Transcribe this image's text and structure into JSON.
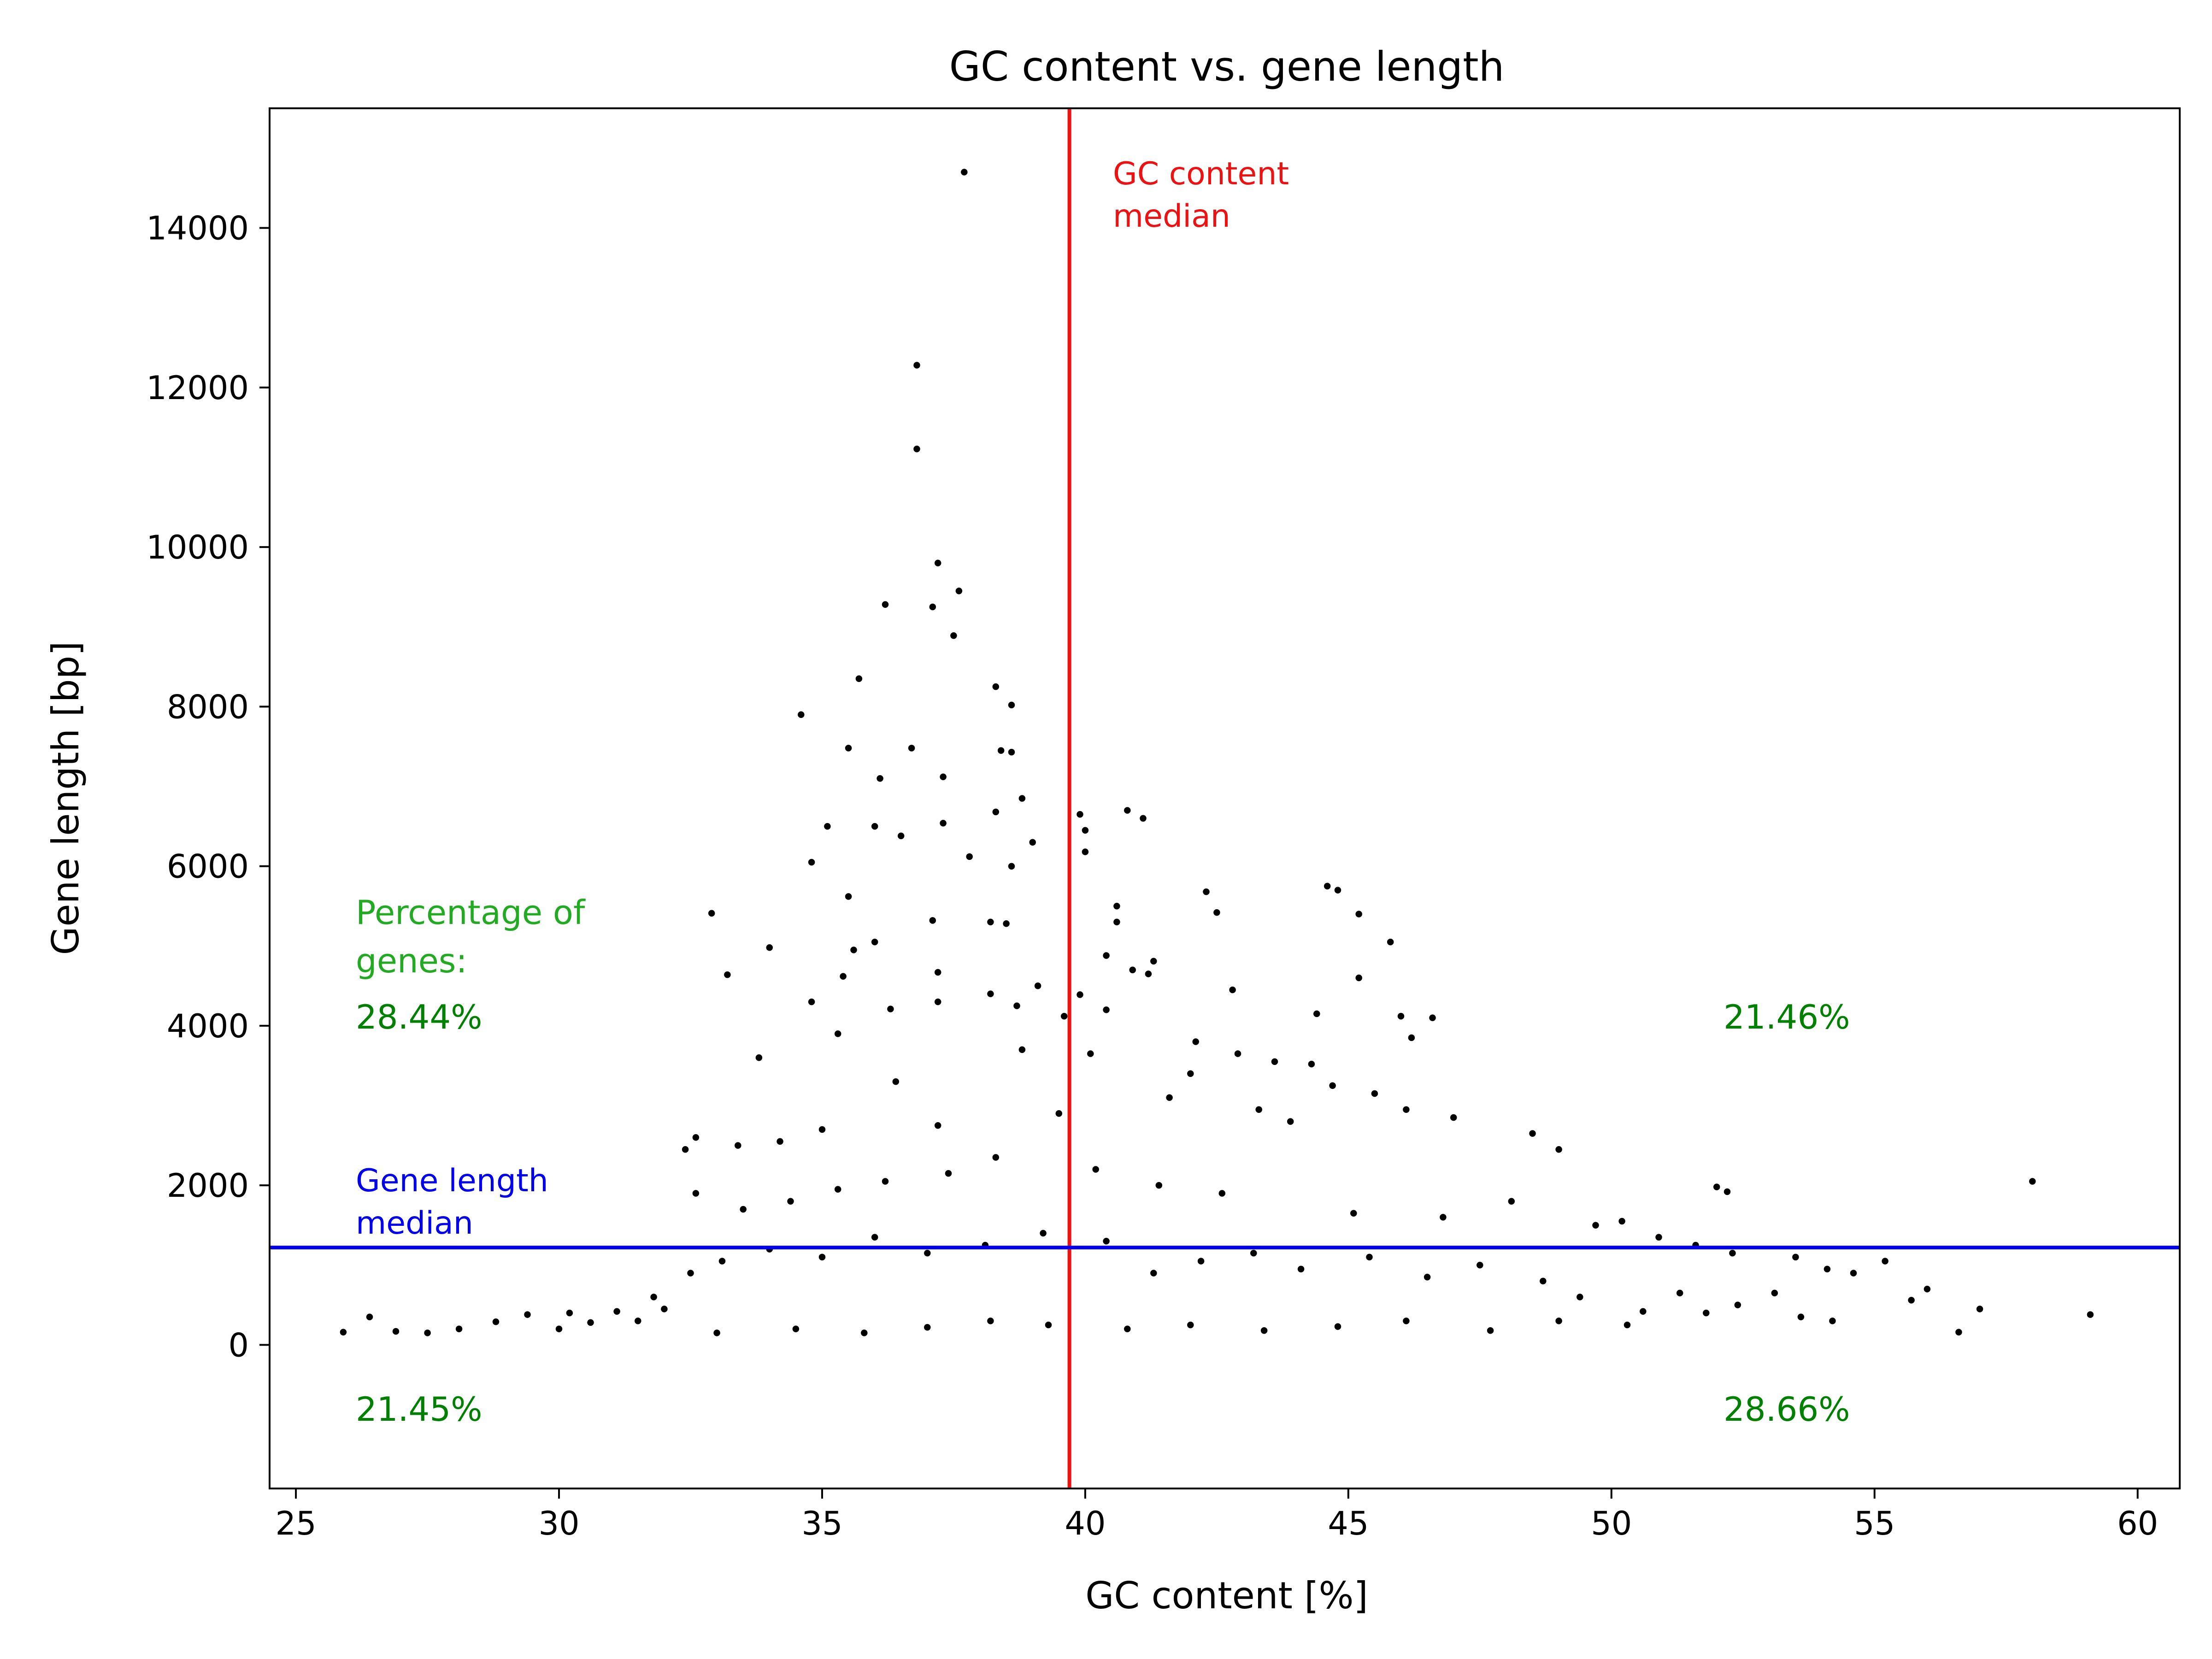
{
  "chart_data": {
    "type": "scatter",
    "title": "GC content vs. gene length",
    "xlabel": "GC content [%]",
    "ylabel": "Gene length [bp]",
    "xlim": [
      24.5,
      60.8
    ],
    "ylim": [
      -1800,
      15500
    ],
    "xticks": [
      25,
      30,
      35,
      40,
      45,
      50,
      55,
      60
    ],
    "yticks": [
      0,
      2000,
      4000,
      6000,
      8000,
      10000,
      12000,
      14000
    ],
    "grid": false,
    "legend": "none",
    "gc_median": 39.7,
    "length_median": 1220,
    "median_labels": {
      "gc": [
        "GC content",
        "median"
      ],
      "length": [
        "Gene length",
        "median"
      ]
    },
    "quadrant_heading": [
      "Percentage of",
      "genes:"
    ],
    "quadrants": {
      "upper_left": "28.44%",
      "upper_right": "21.46%",
      "lower_left": "21.45%",
      "lower_right": "28.66%"
    },
    "colors": {
      "points": "#000000",
      "gc_median_line": "#ee1111",
      "length_median_line": "#0000ee",
      "quadrant_text": "#008000",
      "heading_text": "#22aa22"
    },
    "series": [
      {
        "values": [
          [
            37.7,
            14700
          ],
          [
            36.8,
            12280
          ],
          [
            36.8,
            11230
          ],
          [
            37.2,
            9800
          ],
          [
            37.6,
            9450
          ],
          [
            36.2,
            9280
          ],
          [
            37.1,
            9250
          ],
          [
            37.5,
            8890
          ],
          [
            35.7,
            8350
          ],
          [
            38.3,
            8250
          ],
          [
            38.6,
            8020
          ],
          [
            34.6,
            7900
          ],
          [
            35.5,
            7480
          ],
          [
            36.7,
            7480
          ],
          [
            38.4,
            7450
          ],
          [
            38.6,
            7430
          ],
          [
            37.3,
            7120
          ],
          [
            36.1,
            7100
          ],
          [
            38.8,
            6850
          ],
          [
            40.8,
            6700
          ],
          [
            38.3,
            6680
          ],
          [
            39.9,
            6650
          ],
          [
            41.1,
            6600
          ],
          [
            37.3,
            6540
          ],
          [
            35.1,
            6500
          ],
          [
            36.0,
            6500
          ],
          [
            40.0,
            6450
          ],
          [
            36.5,
            6380
          ],
          [
            39.0,
            6300
          ],
          [
            37.8,
            6120
          ],
          [
            40.0,
            6180
          ],
          [
            34.8,
            6050
          ],
          [
            38.6,
            6000
          ],
          [
            44.6,
            5750
          ],
          [
            44.8,
            5700
          ],
          [
            42.3,
            5680
          ],
          [
            35.5,
            5620
          ],
          [
            38.2,
            5300
          ],
          [
            38.5,
            5280
          ],
          [
            37.1,
            5320
          ],
          [
            42.5,
            5420
          ],
          [
            45.2,
            5400
          ],
          [
            32.9,
            5410
          ],
          [
            40.6,
            5300
          ],
          [
            40.6,
            5500
          ],
          [
            45.8,
            5050
          ],
          [
            36.0,
            5050
          ],
          [
            35.6,
            4950
          ],
          [
            34.0,
            4980
          ],
          [
            40.4,
            4880
          ],
          [
            41.3,
            4810
          ],
          [
            40.9,
            4700
          ],
          [
            37.2,
            4670
          ],
          [
            35.4,
            4620
          ],
          [
            33.2,
            4640
          ],
          [
            42.8,
            4450
          ],
          [
            45.2,
            4600
          ],
          [
            41.2,
            4650
          ],
          [
            34.8,
            4300
          ],
          [
            38.2,
            4400
          ],
          [
            39.1,
            4500
          ],
          [
            44.4,
            4150
          ],
          [
            46.0,
            4120
          ],
          [
            46.6,
            4100
          ],
          [
            36.3,
            4210
          ],
          [
            37.2,
            4300
          ],
          [
            38.7,
            4250
          ],
          [
            39.6,
            4120
          ],
          [
            39.9,
            4390
          ],
          [
            40.4,
            4200
          ],
          [
            42.1,
            3800
          ],
          [
            42.9,
            3650
          ],
          [
            43.6,
            3550
          ],
          [
            44.3,
            3520
          ],
          [
            46.2,
            3850
          ],
          [
            40.1,
            3650
          ],
          [
            38.8,
            3700
          ],
          [
            35.3,
            3900
          ],
          [
            33.8,
            3600
          ],
          [
            36.4,
            3300
          ],
          [
            42.0,
            3400
          ],
          [
            44.7,
            3250
          ],
          [
            45.5,
            3150
          ],
          [
            41.6,
            3100
          ],
          [
            43.3,
            2950
          ],
          [
            47.0,
            2850
          ],
          [
            46.1,
            2950
          ],
          [
            48.5,
            2650
          ],
          [
            49.0,
            2450
          ],
          [
            43.9,
            2800
          ],
          [
            39.5,
            2900
          ],
          [
            37.2,
            2750
          ],
          [
            35.0,
            2700
          ],
          [
            34.2,
            2550
          ],
          [
            33.4,
            2500
          ],
          [
            32.6,
            2600
          ],
          [
            32.4,
            2450
          ],
          [
            52.0,
            1980
          ],
          [
            52.2,
            1920
          ],
          [
            58.0,
            2050
          ],
          [
            48.1,
            1800
          ],
          [
            46.8,
            1600
          ],
          [
            45.1,
            1650
          ],
          [
            42.6,
            1900
          ],
          [
            41.4,
            2000
          ],
          [
            40.2,
            2200
          ],
          [
            38.3,
            2350
          ],
          [
            37.4,
            2150
          ],
          [
            36.2,
            2050
          ],
          [
            35.3,
            1950
          ],
          [
            34.4,
            1800
          ],
          [
            33.5,
            1700
          ],
          [
            32.6,
            1900
          ],
          [
            49.7,
            1500
          ],
          [
            50.2,
            1550
          ],
          [
            50.9,
            1350
          ],
          [
            51.6,
            1250
          ],
          [
            52.3,
            1150
          ],
          [
            53.5,
            1100
          ],
          [
            55.2,
            1050
          ],
          [
            54.1,
            950
          ],
          [
            56.0,
            700
          ],
          [
            55.7,
            560
          ],
          [
            57.0,
            450
          ],
          [
            56.6,
            160
          ],
          [
            59.1,
            380
          ],
          [
            54.2,
            300
          ],
          [
            53.6,
            350
          ],
          [
            52.4,
            500
          ],
          [
            51.3,
            650
          ],
          [
            50.6,
            420
          ],
          [
            49.4,
            600
          ],
          [
            48.7,
            800
          ],
          [
            47.5,
            1000
          ],
          [
            46.5,
            850
          ],
          [
            45.4,
            1100
          ],
          [
            44.1,
            950
          ],
          [
            43.2,
            1150
          ],
          [
            42.2,
            1050
          ],
          [
            41.3,
            900
          ],
          [
            40.4,
            1300
          ],
          [
            39.2,
            1400
          ],
          [
            38.1,
            1250
          ],
          [
            37.0,
            1150
          ],
          [
            36.0,
            1350
          ],
          [
            35.0,
            1100
          ],
          [
            34.0,
            1200
          ],
          [
            33.1,
            1050
          ],
          [
            32.5,
            900
          ],
          [
            31.8,
            600
          ],
          [
            31.1,
            420
          ],
          [
            30.6,
            280
          ],
          [
            30.0,
            200
          ],
          [
            29.4,
            380
          ],
          [
            28.8,
            290
          ],
          [
            28.1,
            200
          ],
          [
            27.5,
            150
          ],
          [
            26.9,
            170
          ],
          [
            26.4,
            350
          ],
          [
            25.9,
            160
          ],
          [
            30.2,
            400
          ],
          [
            31.5,
            300
          ],
          [
            32.0,
            450
          ],
          [
            33.0,
            150
          ],
          [
            34.5,
            200
          ],
          [
            35.8,
            150
          ],
          [
            37.0,
            220
          ],
          [
            38.2,
            300
          ],
          [
            39.3,
            250
          ],
          [
            40.8,
            200
          ],
          [
            42.0,
            250
          ],
          [
            43.4,
            180
          ],
          [
            44.8,
            230
          ],
          [
            46.1,
            300
          ],
          [
            47.7,
            180
          ],
          [
            49.0,
            300
          ],
          [
            50.3,
            250
          ],
          [
            51.8,
            400
          ],
          [
            53.1,
            650
          ],
          [
            54.6,
            900
          ]
        ]
      }
    ]
  }
}
